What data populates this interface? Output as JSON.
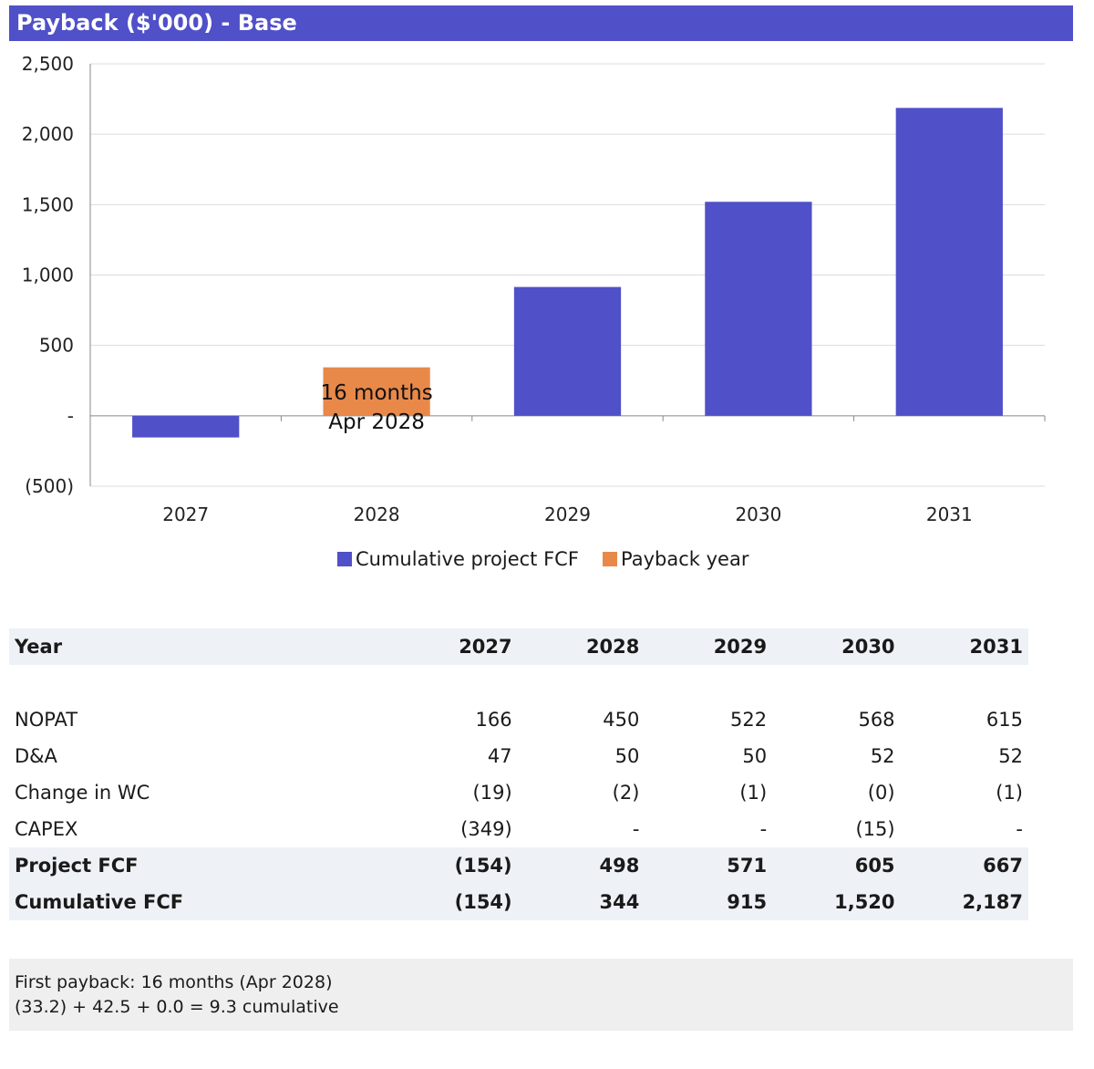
{
  "title": "Payback ($'000) - Base",
  "colors": {
    "primary": "#5050c8",
    "payback": "#e8894a",
    "title_bg": "#5050c8"
  },
  "chart_data": {
    "type": "bar",
    "categories": [
      "2027",
      "2028",
      "2029",
      "2030",
      "2031"
    ],
    "series": [
      {
        "name": "Cumulative project FCF",
        "color": "#5050c8",
        "values": [
          -154,
          null,
          915,
          1520,
          2187
        ]
      },
      {
        "name": "Payback year",
        "color": "#e8894a",
        "values": [
          null,
          344,
          null,
          null,
          null
        ]
      }
    ],
    "ylim": [
      -500,
      2500
    ],
    "yticks": [
      {
        "value": 2500,
        "label": "2,500"
      },
      {
        "value": 2000,
        "label": "2,000"
      },
      {
        "value": 1500,
        "label": "1,500"
      },
      {
        "value": 1000,
        "label": "1,000"
      },
      {
        "value": 500,
        "label": "500"
      },
      {
        "value": 0,
        "label": "-"
      },
      {
        "value": -500,
        "label": "(500)"
      }
    ],
    "annotation": {
      "category": "2028",
      "lines": [
        "16 months",
        "Apr 2028"
      ]
    },
    "grid": true,
    "legend_position": "bottom"
  },
  "table": {
    "header": [
      "Year",
      "2027",
      "2028",
      "2029",
      "2030",
      "2031"
    ],
    "rows": [
      {
        "label": "NOPAT",
        "values": [
          "166",
          "450",
          "522",
          "568",
          "615"
        ],
        "bold": false
      },
      {
        "label": "D&A",
        "values": [
          "47",
          "50",
          "50",
          "52",
          "52"
        ],
        "bold": false
      },
      {
        "label": "Change in WC",
        "values": [
          "(19)",
          "(2)",
          "(1)",
          "(0)",
          "(1)"
        ],
        "bold": false
      },
      {
        "label": "CAPEX",
        "values": [
          "(349)",
          "-",
          "-",
          "(15)",
          "-"
        ],
        "bold": false
      },
      {
        "label": "Project FCF",
        "values": [
          "(154)",
          "498",
          "571",
          "605",
          "667"
        ],
        "bold": true
      },
      {
        "label": "Cumulative FCF",
        "values": [
          "(154)",
          "344",
          "915",
          "1,520",
          "2,187"
        ],
        "bold": true
      }
    ]
  },
  "note": {
    "line1": "First payback: 16 months (Apr 2028)",
    "line2": "(33.2) + 42.5 + 0.0 = 9.3 cumulative"
  }
}
